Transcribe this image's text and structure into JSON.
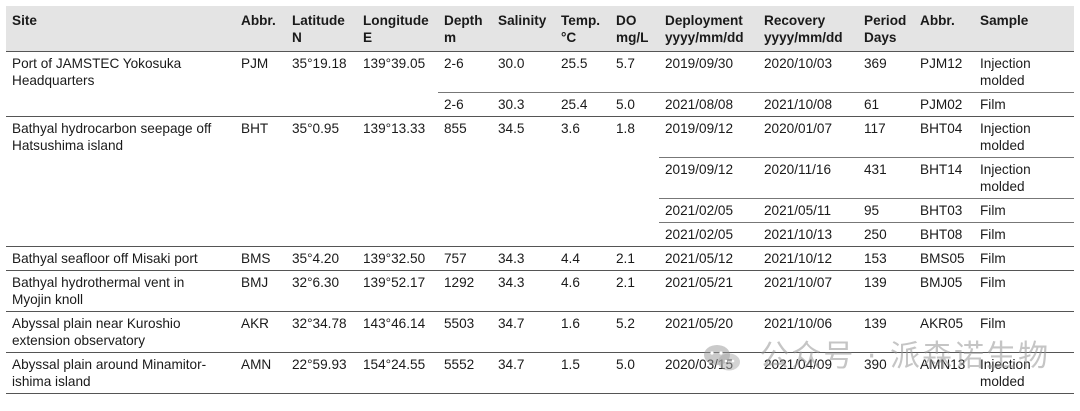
{
  "columns": [
    {
      "l1": "Site",
      "l2": ""
    },
    {
      "l1": "Abbr.",
      "l2": ""
    },
    {
      "l1": "Latitude",
      "l2": "N"
    },
    {
      "l1": "Longitude",
      "l2": "E"
    },
    {
      "l1": "Depth",
      "l2": "m"
    },
    {
      "l1": "Salinity",
      "l2": ""
    },
    {
      "l1": "Temp.",
      "l2": "°C"
    },
    {
      "l1": "DO",
      "l2": "mg/L"
    },
    {
      "l1": "Deployment",
      "l2": "yyyy/mm/dd"
    },
    {
      "l1": "Recovery",
      "l2": "yyyy/mm/dd"
    },
    {
      "l1": "Period",
      "l2": "Days"
    },
    {
      "l1": "Abbr.",
      "l2": ""
    },
    {
      "l1": "Sample",
      "l2": ""
    }
  ],
  "sites": [
    {
      "site": [
        "Port of JAMSTEC Yokosuka",
        "Headquarters"
      ],
      "abbr": "PJM",
      "lat": "35°19.18",
      "lon": "139°39.05",
      "deployments": [
        {
          "depth": "2-6",
          "salinity": "30.0",
          "temp": "25.5",
          "do": "5.7",
          "deploy": "2019/09/30",
          "recover": "2020/10/03",
          "period": "369",
          "sabbr": "PJM12",
          "sample": [
            "Injection",
            "molded"
          ]
        },
        {
          "depth": "2-6",
          "salinity": "30.3",
          "temp": "25.4",
          "do": "5.0",
          "deploy": "2021/08/08",
          "recover": "2021/10/08",
          "period": "61",
          "sabbr": "PJM02",
          "sample": [
            "Film"
          ]
        }
      ]
    },
    {
      "site": [
        "Bathyal hydrocarbon seepage off",
        "Hatsushima island"
      ],
      "abbr": "BHT",
      "lat": "35°0.95",
      "lon": "139°13.33",
      "depth": "855",
      "salinity": "34.5",
      "temp": "3.6",
      "do": "1.8",
      "deployments": [
        {
          "deploy": "2019/09/12",
          "recover": "2020/01/07",
          "period": "117",
          "sabbr": "BHT04",
          "sample": [
            "Injection",
            "molded"
          ]
        },
        {
          "deploy": "2019/09/12",
          "recover": "2020/11/16",
          "period": "431",
          "sabbr": "BHT14",
          "sample": [
            "Injection",
            "molded"
          ]
        },
        {
          "deploy": "2021/02/05",
          "recover": "2021/05/11",
          "period": "95",
          "sabbr": "BHT03",
          "sample": [
            "Film"
          ]
        },
        {
          "deploy": "2021/02/05",
          "recover": "2021/10/13",
          "period": "250",
          "sabbr": "BHT08",
          "sample": [
            "Film"
          ]
        }
      ]
    },
    {
      "site": [
        "Bathyal seafloor off Misaki port"
      ],
      "abbr": "BMS",
      "lat": "35°4.20",
      "lon": "139°32.50",
      "deployments": [
        {
          "depth": "757",
          "salinity": "34.3",
          "temp": "4.4",
          "do": "2.1",
          "deploy": "2021/05/12",
          "recover": "2021/10/12",
          "period": "153",
          "sabbr": "BMS05",
          "sample": [
            "Film"
          ]
        }
      ]
    },
    {
      "site": [
        "Bathyal hydrothermal vent in",
        "Myojin knoll"
      ],
      "abbr": "BMJ",
      "lat": "32°6.30",
      "lon": "139°52.17",
      "deployments": [
        {
          "depth": "1292",
          "salinity": "34.3",
          "temp": "4.6",
          "do": "2.1",
          "deploy": "2021/05/21",
          "recover": "2021/10/07",
          "period": "139",
          "sabbr": "BMJ05",
          "sample": [
            "Film"
          ]
        }
      ]
    },
    {
      "site": [
        "Abyssal plain near Kuroshio",
        "extension observatory"
      ],
      "abbr": "AKR",
      "lat": "32°34.78",
      "lon": "143°46.14",
      "deployments": [
        {
          "depth": "5503",
          "salinity": "34.7",
          "temp": "1.6",
          "do": "5.2",
          "deploy": "2021/05/20",
          "recover": "2021/10/06",
          "period": "139",
          "sabbr": "AKR05",
          "sample": [
            "Film"
          ]
        }
      ]
    },
    {
      "site": [
        "Abyssal plain around Minamitor-",
        "ishima island"
      ],
      "abbr": "AMN",
      "lat": "22°59.93",
      "lon": "154°24.55",
      "deployments": [
        {
          "depth": "5552",
          "salinity": "34.7",
          "temp": "1.5",
          "do": "5.0",
          "deploy": "2020/03/15",
          "recover": "2021/04/09",
          "period": "390",
          "sabbr": "AMN13",
          "sample": [
            "Injection",
            "molded"
          ]
        }
      ]
    }
  ],
  "watermark": {
    "text": "公众号 · 派森诺生物",
    "icon": "wechat-icon"
  }
}
